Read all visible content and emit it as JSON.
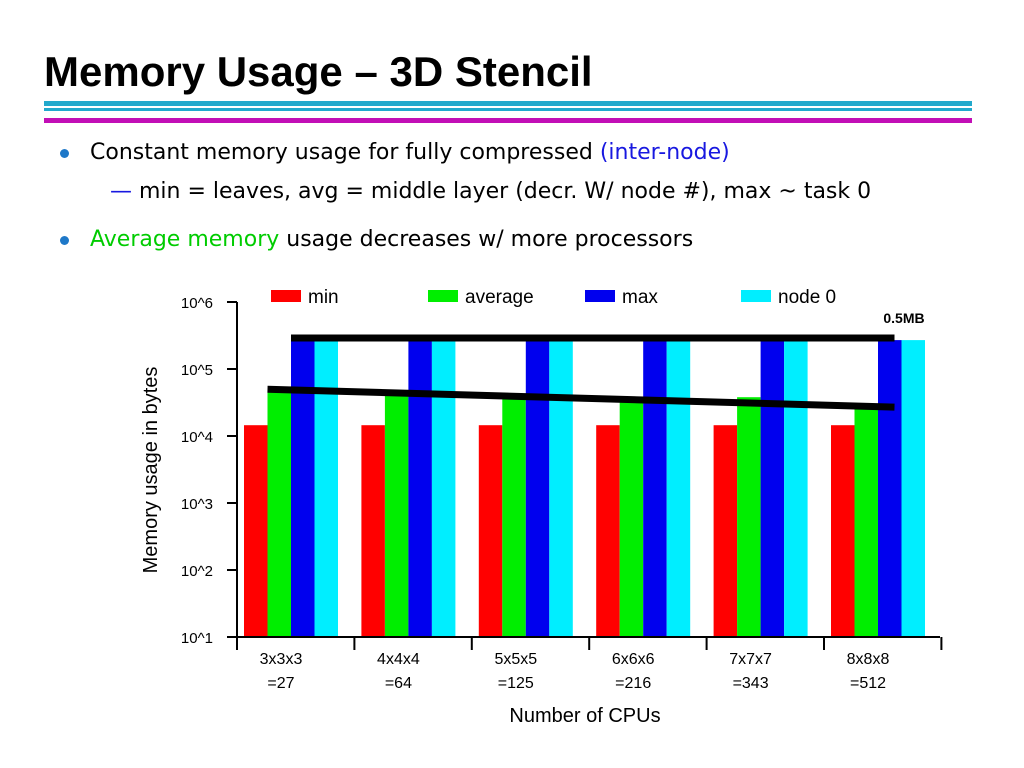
{
  "slide": {
    "title": "Memory Usage – 3D Stencil",
    "bullets": [
      {
        "text": "Constant memory usage for fully compressed ",
        "highlight": "(inter-node)",
        "highlight_color": "#1818e0",
        "subbullet": {
          "dash": "—",
          "text": "min = leaves, avg = middle layer (decr. W/ node #), max ~ task 0"
        }
      },
      {
        "highlight": "Average memory",
        "highlight_color": "#00cc00",
        "text": " usage decreases w/ more processors"
      }
    ]
  },
  "chart_data": {
    "type": "bar",
    "yscale": "log",
    "ylim": [
      10,
      1000000
    ],
    "xlabel": "Number of CPUs",
    "ylabel": "Memory usage in bytes",
    "yticks": [
      {
        "value": 10,
        "label": "10^1"
      },
      {
        "value": 100,
        "label": "10^2"
      },
      {
        "value": 1000,
        "label": "10^3"
      },
      {
        "value": 10000,
        "label": "10^4"
      },
      {
        "value": 100000,
        "label": "10^5"
      },
      {
        "value": 1000000,
        "label": "10^6"
      }
    ],
    "categories": [
      {
        "line1": "3x3x3",
        "line2": "=27"
      },
      {
        "line1": "4x4x4",
        "line2": "=64"
      },
      {
        "line1": "5x5x5",
        "line2": "=125"
      },
      {
        "line1": "6x6x6",
        "line2": "=216"
      },
      {
        "line1": "7x7x7",
        "line2": "=343"
      },
      {
        "line1": "8x8x8",
        "line2": "=512"
      }
    ],
    "series": [
      {
        "name": "min",
        "color": "#ff0000",
        "values": [
          14500,
          14500,
          14500,
          14500,
          14500,
          14500
        ]
      },
      {
        "name": "average",
        "color": "#00ee00",
        "values": [
          45000,
          42000,
          39000,
          37000,
          38000,
          26000
        ]
      },
      {
        "name": "max",
        "color": "#0000ee",
        "values": [
          270000,
          270000,
          270000,
          270000,
          270000,
          270000
        ]
      },
      {
        "name": "node 0",
        "color": "#00eeff",
        "values": [
          270000,
          270000,
          270000,
          270000,
          270000,
          270000
        ]
      }
    ],
    "legend_position": "top",
    "annotation": {
      "text": "0.5MB"
    },
    "overlay_lines": [
      {
        "category_range": [
          0,
          5
        ],
        "values": [
          290000,
          290000
        ],
        "color": "#000000"
      },
      {
        "category_range": [
          0,
          5
        ],
        "values": [
          50000,
          27000
        ],
        "color": "#000000"
      }
    ],
    "grid": false
  }
}
